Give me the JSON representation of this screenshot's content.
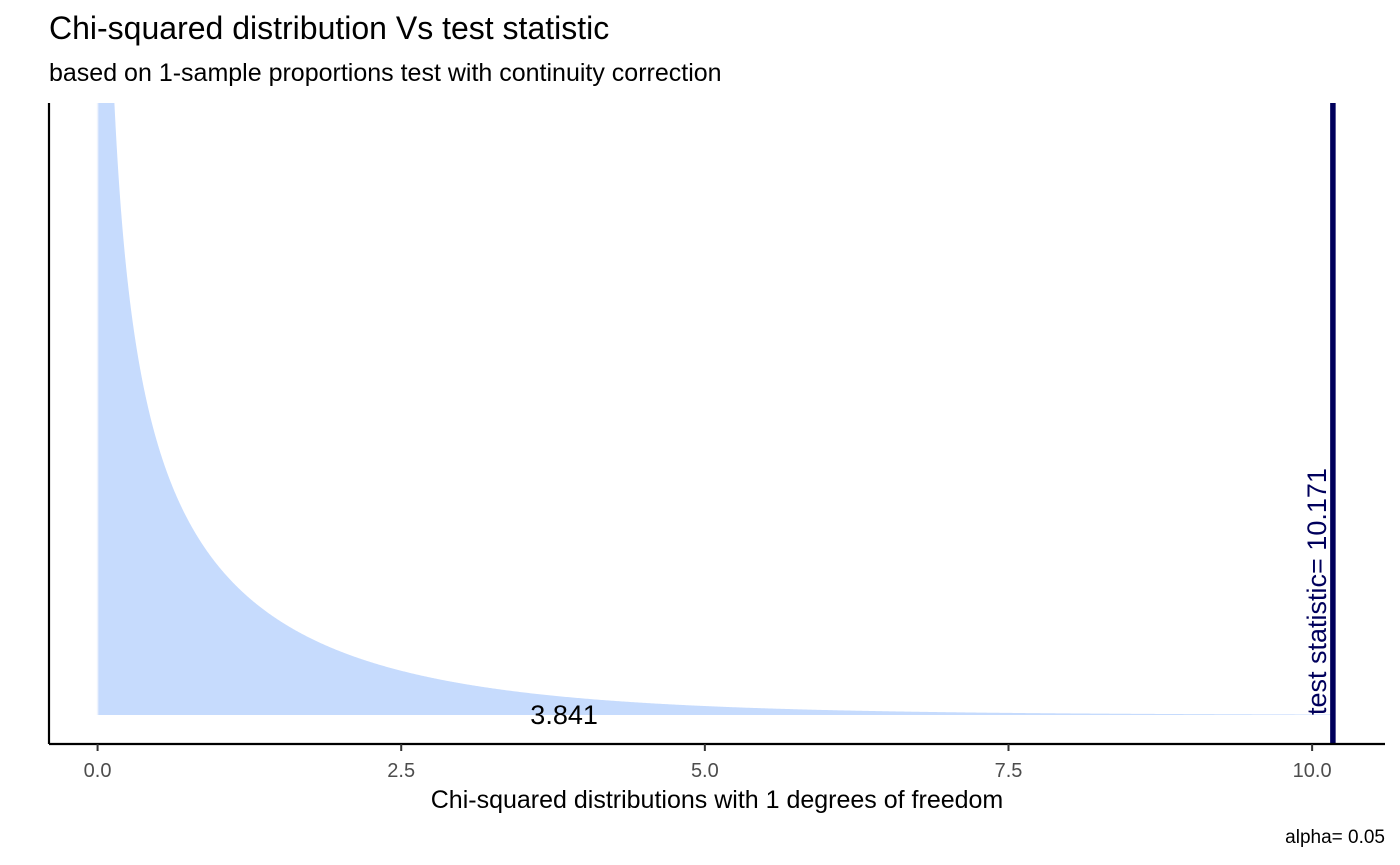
{
  "chart_data": {
    "type": "area",
    "title": "Chi-squared distribution Vs test statistic",
    "subtitle": "based on 1-sample proportions test with continuity correction",
    "xlabel": "Chi-squared distributions with 1 degrees of freedom",
    "ylabel": "",
    "caption": "alpha= 0.05",
    "degrees_of_freedom": 1,
    "xlim": [
      -0.4,
      10.6
    ],
    "ylim": [
      0,
      1.0
    ],
    "density_xrange": [
      0,
      10.171
    ],
    "x_ticks": [
      0.0,
      2.5,
      5.0,
      7.5,
      10.0
    ],
    "x_tick_labels": [
      "0.0",
      "2.5",
      "5.0",
      "7.5",
      "10.0"
    ],
    "critical_value": {
      "x": 3.841,
      "label": "3.841"
    },
    "test_statistic": {
      "x": 10.171,
      "label": "test statistic= 10.171"
    },
    "grid": false,
    "legend": "none",
    "colors": {
      "area_fill": "#c6dbfd",
      "test_line": "#00005c",
      "axis": "#000000",
      "tick_text": "#4d4d4d"
    }
  }
}
